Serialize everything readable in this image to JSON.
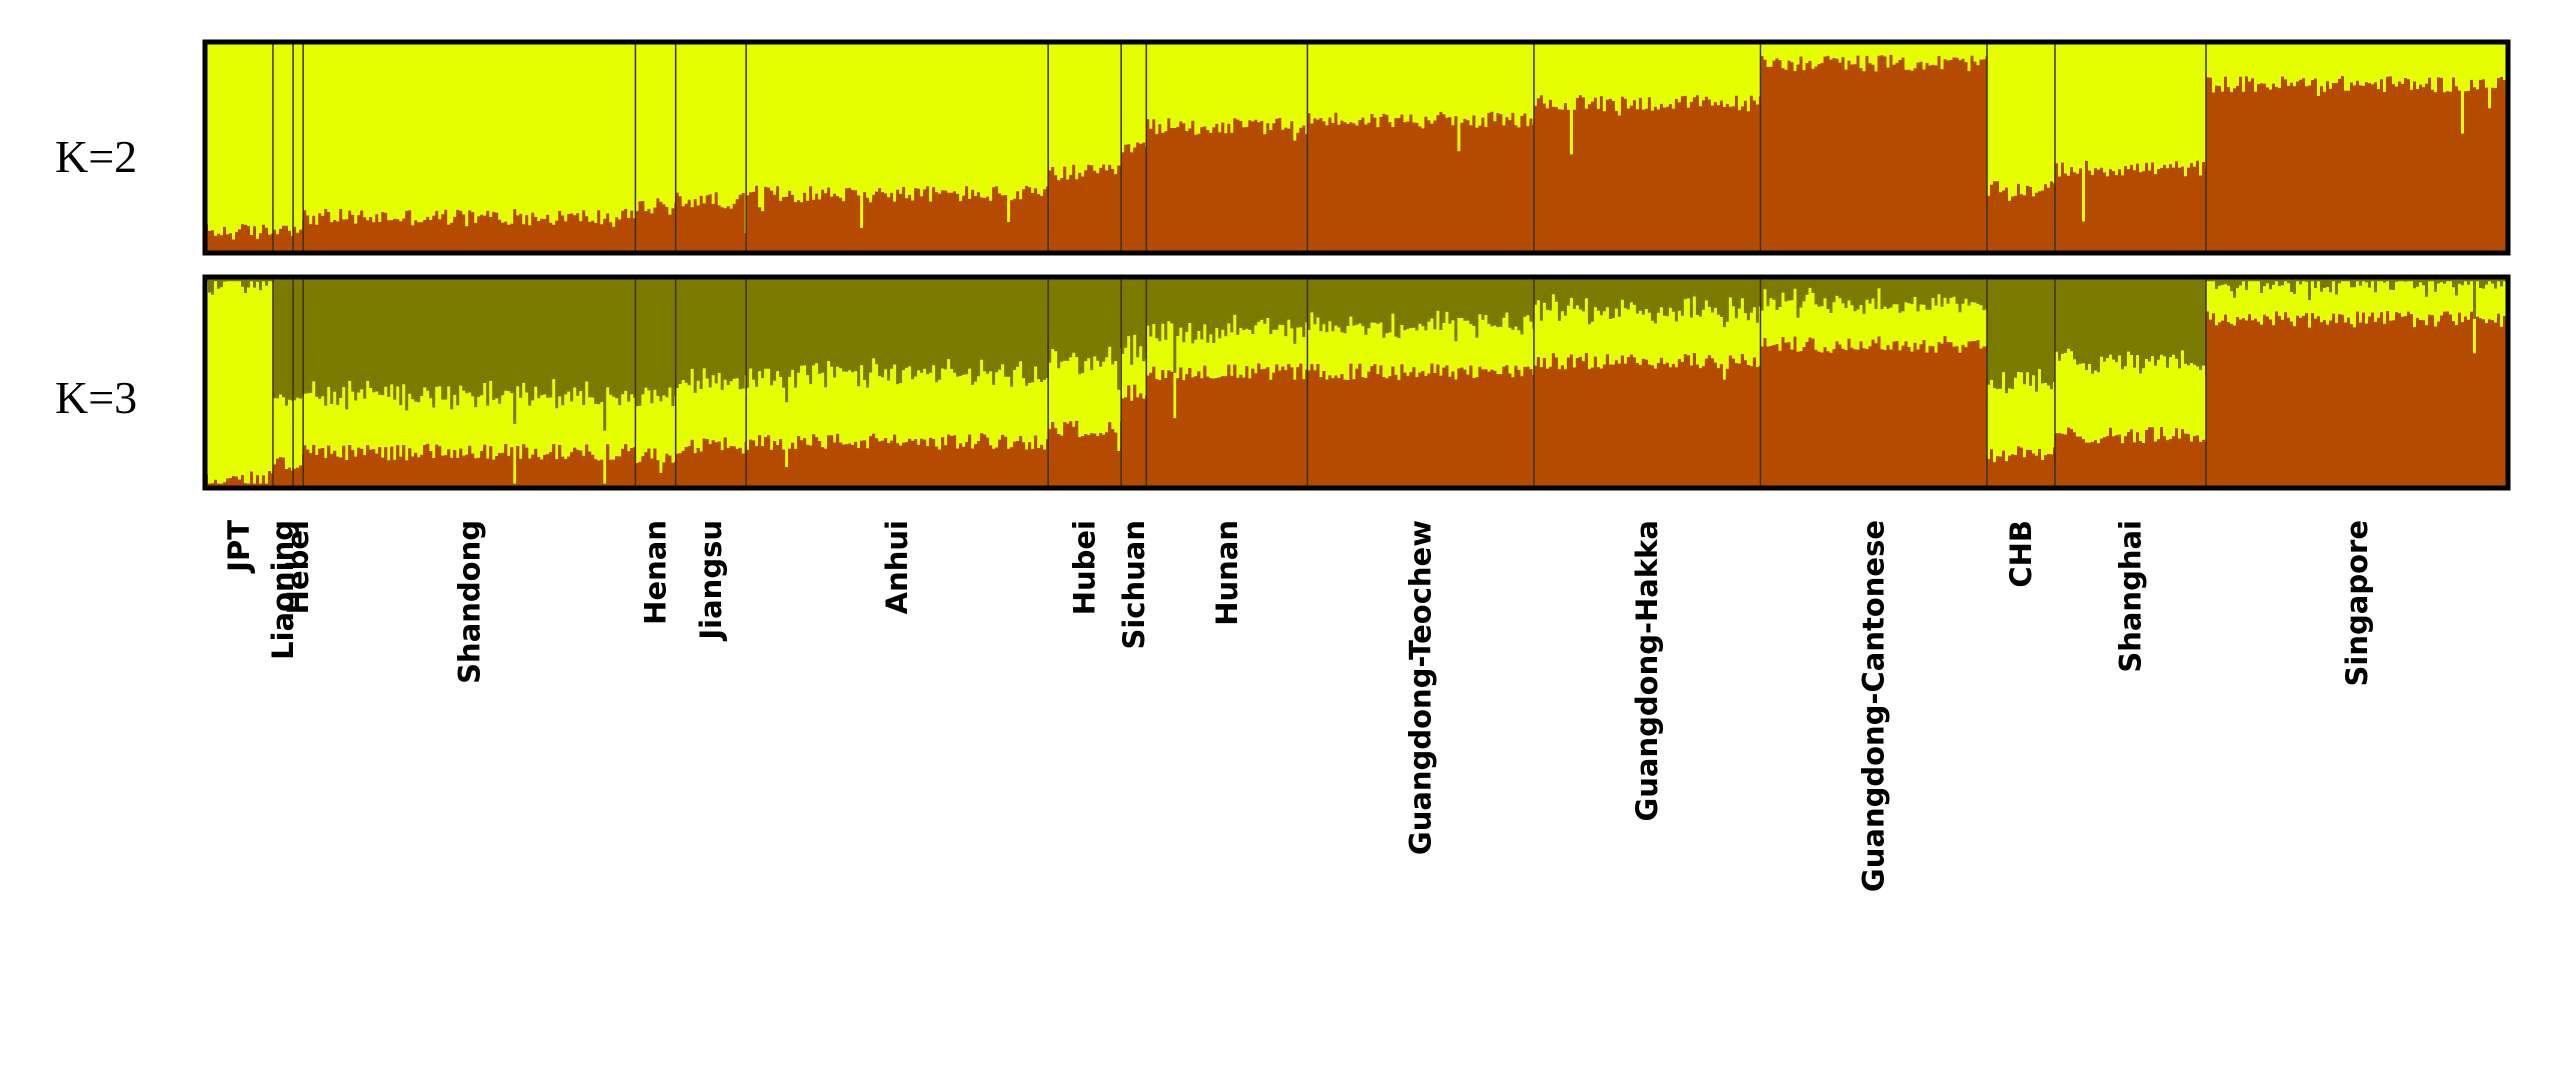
{
  "chart_data": {
    "type": "bar",
    "stacked": true,
    "title": "",
    "xlabel": "",
    "ylabel": "",
    "ylim": [
      0,
      1
    ],
    "colors": {
      "yellow": "#e6ff00",
      "orange": "#b54b00",
      "olive": "#7a7a00",
      "separator": "#3a3000",
      "frame": "#000000"
    },
    "populations": [
      {
        "name": "JPT",
        "share": 0.027
      },
      {
        "name": "Liaoning",
        "share": 0.008
      },
      {
        "name": "Hebei",
        "share": 0.004
      },
      {
        "name": "Shandong",
        "share": 0.132
      },
      {
        "name": "Henan",
        "share": 0.016
      },
      {
        "name": "Jiangsu",
        "share": 0.028
      },
      {
        "name": "Anhui",
        "share": 0.12
      },
      {
        "name": "Hubei",
        "share": 0.029
      },
      {
        "name": "Sichuan",
        "share": 0.01
      },
      {
        "name": "Hunan",
        "share": 0.064
      },
      {
        "name": "Guangdong-Teochew",
        "share": 0.09
      },
      {
        "name": "Guangdong-Hakka",
        "share": 0.09
      },
      {
        "name": "Guangdong-Cantonese",
        "share": 0.09
      },
      {
        "name": "CHB",
        "share": 0.027
      },
      {
        "name": "Shanghai",
        "share": 0.06
      },
      {
        "name": "Singapore",
        "share": 0.12
      }
    ],
    "panels": [
      {
        "label": "K=2",
        "components": [
          "orange",
          "yellow"
        ],
        "orange_fraction_by_population": [
          0.1,
          0.12,
          0.13,
          0.17,
          0.22,
          0.25,
          0.28,
          0.38,
          0.5,
          0.6,
          0.63,
          0.71,
          0.9,
          0.3,
          0.4,
          0.8
        ]
      },
      {
        "label": "K=3",
        "components": [
          "orange",
          "yellow",
          "olive"
        ],
        "orange_fraction_by_population": [
          0.04,
          0.12,
          0.13,
          0.17,
          0.15,
          0.2,
          0.22,
          0.28,
          0.45,
          0.55,
          0.55,
          0.6,
          0.68,
          0.16,
          0.25,
          0.8
        ],
        "yellow_fraction_by_population": [
          0.93,
          0.3,
          0.32,
          0.27,
          0.3,
          0.3,
          0.32,
          0.33,
          0.2,
          0.2,
          0.22,
          0.25,
          0.2,
          0.34,
          0.35,
          0.17
        ]
      }
    ]
  }
}
